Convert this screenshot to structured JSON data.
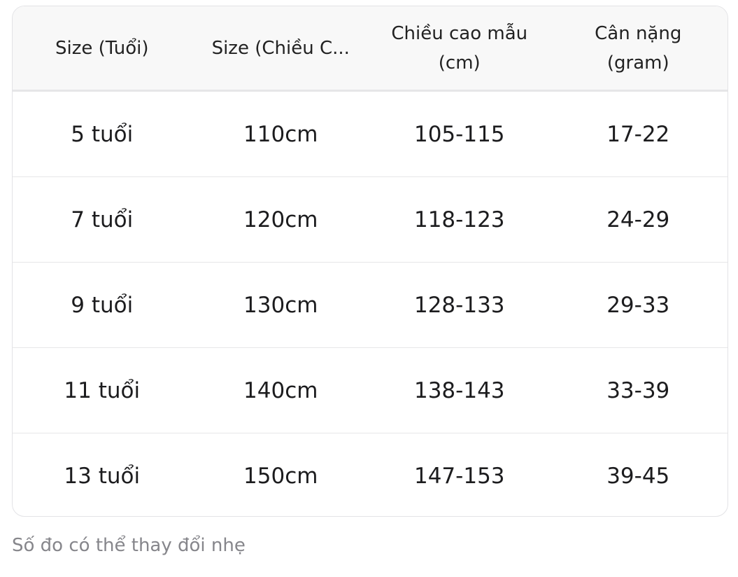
{
  "table": {
    "headers": [
      "Size (Tuổi)",
      "Size (Chiều C...",
      "Chiều cao mẫu\n(cm)",
      "Cân nặng\n(gram)"
    ],
    "rows": [
      [
        "5 tuổi",
        "110cm",
        "105-115",
        "17-22"
      ],
      [
        "7 tuổi",
        "120cm",
        "118-123",
        "24-29"
      ],
      [
        "9 tuổi",
        "130cm",
        "128-133",
        "29-33"
      ],
      [
        "11 tuổi",
        "140cm",
        "138-143",
        "33-39"
      ],
      [
        "13 tuổi",
        "150cm",
        "147-153",
        "39-45"
      ]
    ]
  },
  "note": "Số đo có thể thay đổi nhẹ"
}
